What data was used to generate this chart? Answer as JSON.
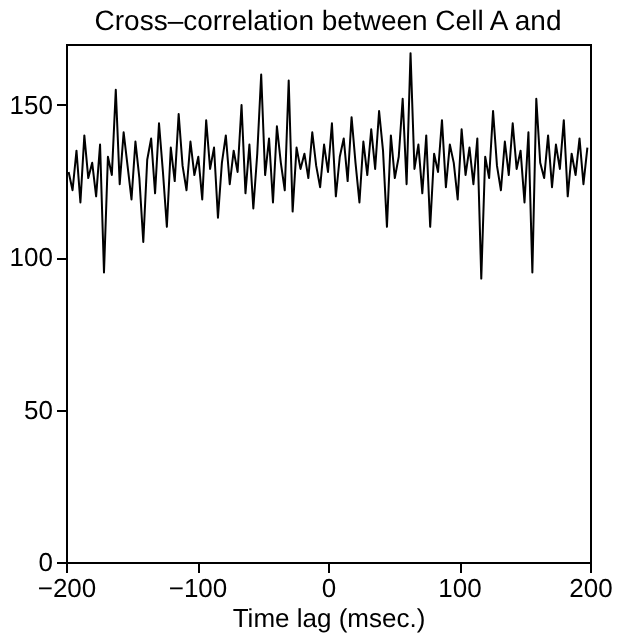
{
  "chart_data": {
    "type": "line",
    "title": "Cross–correlation between Cell A and",
    "xlabel": "Time lag (msec.)",
    "x": [
      -198,
      -195,
      -192,
      -189,
      -186,
      -183,
      -180,
      -177,
      -174,
      -171,
      -168,
      -165,
      -162,
      -159,
      -156,
      -153,
      -150,
      -147,
      -144,
      -141,
      -138,
      -135,
      -132,
      -129,
      -126,
      -123,
      -120,
      -117,
      -114,
      -111,
      -108,
      -105,
      -102,
      -99,
      -96,
      -93,
      -90,
      -87,
      -84,
      -81,
      -78,
      -75,
      -72,
      -69,
      -66,
      -63,
      -60,
      -57,
      -54,
      -51,
      -48,
      -45,
      -42,
      -39,
      -36,
      -33,
      -30,
      -27,
      -24,
      -21,
      -18,
      -15,
      -12,
      -9,
      -6,
      -3,
      0,
      3,
      6,
      9,
      12,
      15,
      18,
      21,
      24,
      27,
      30,
      33,
      36,
      39,
      42,
      45,
      48,
      51,
      54,
      57,
      60,
      63,
      66,
      69,
      72,
      75,
      78,
      81,
      84,
      87,
      90,
      93,
      96,
      99,
      102,
      105,
      108,
      111,
      114,
      117,
      120,
      123,
      126,
      129,
      132,
      135,
      138,
      141,
      144,
      147,
      150,
      153,
      156,
      159,
      162,
      165,
      168,
      171,
      174,
      177,
      180,
      183,
      186,
      189,
      192,
      195,
      198
    ],
    "series": [
      {
        "color": "#000000",
        "values": [
          128,
          122,
          135,
          118,
          140,
          126,
          131,
          120,
          137,
          95,
          133,
          127,
          155,
          124,
          141,
          130,
          119,
          138,
          126,
          105,
          132,
          139,
          121,
          144,
          128,
          110,
          136,
          125,
          147,
          130,
          122,
          138,
          127,
          133,
          119,
          145,
          129,
          136,
          113,
          131,
          140,
          124,
          135,
          128,
          150,
          121,
          137,
          116,
          134,
          160,
          127,
          139,
          118,
          143,
          131,
          122,
          158,
          115,
          136,
          129,
          134,
          126,
          141,
          130,
          123,
          137,
          128,
          144,
          120,
          133,
          139,
          125,
          146,
          131,
          118,
          138,
          127,
          142,
          129,
          148,
          135,
          110,
          140,
          126,
          133,
          152,
          124,
          167,
          129,
          137,
          121,
          140,
          110,
          134,
          128,
          145,
          123,
          137,
          131,
          119,
          142,
          127,
          136,
          124,
          139,
          93,
          133,
          126,
          148,
          130,
          122,
          138,
          127,
          144,
          129,
          135,
          118,
          141,
          95,
          152,
          131,
          126,
          140,
          123,
          137,
          129,
          145,
          120,
          134,
          127,
          139,
          124,
          136
        ]
      }
    ],
    "xlim": [
      -200,
      200
    ],
    "xticks": [
      -200,
      -100,
      0,
      100,
      200
    ],
    "ylim": [
      0,
      170
    ],
    "yticks": [
      0,
      50,
      100,
      150
    ],
    "grid": false
  }
}
